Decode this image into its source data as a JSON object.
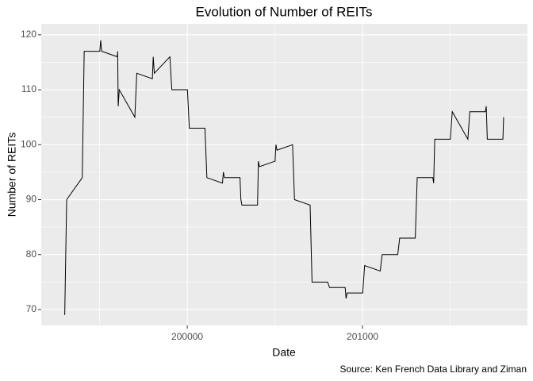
{
  "chart_data": {
    "type": "line",
    "title": "Evolution of Number of REITs",
    "x_label": "Date",
    "y_label": "Number of REITs",
    "caption": "Source: Ken French Data Library and Ziman",
    "x": [
      199301,
      199312,
      199401,
      199412,
      199501,
      199506,
      199512,
      199601,
      199603,
      199606,
      199612,
      199701,
      199712,
      199801,
      199806,
      199812,
      199901,
      199912,
      200001,
      200012,
      200101,
      200112,
      200201,
      200206,
      200212,
      200301,
      200306,
      200312,
      200401,
      200406,
      200412,
      200501,
      200506,
      200512,
      200601,
      200612,
      200701,
      200712,
      200801,
      200812,
      200901,
      200906,
      200912,
      201001,
      201012,
      201101,
      201112,
      201201,
      201212,
      201301,
      201312,
      201401,
      201406,
      201412,
      201501,
      201512,
      201601,
      201612,
      201701,
      201706,
      201712,
      201801,
      201805
    ],
    "series": [
      {
        "name": "REITs",
        "color": "#000000",
        "values": [
          69,
          90,
          94,
          117,
          117,
          119,
          117,
          116,
          117,
          107,
          110,
          105,
          113,
          112,
          116,
          113,
          116,
          110,
          110,
          103,
          103,
          94,
          93,
          95,
          94,
          94,
          90,
          89,
          89,
          97,
          96,
          97,
          100,
          99,
          100,
          90,
          89,
          75,
          75,
          74,
          74,
          72,
          73,
          73,
          78,
          77,
          80,
          80,
          83,
          83,
          94,
          94,
          93,
          101,
          101,
          106,
          101,
          106,
          106,
          107,
          101,
          101,
          105
        ]
      }
    ],
    "xlim": [
      199167,
      201941
    ],
    "xticks": [
      200000,
      201000
    ],
    "minor_xticks": [
      199500,
      200500,
      201500
    ],
    "ylim": [
      67.1,
      122
    ],
    "yticks": [
      70,
      80,
      90,
      100,
      110,
      120
    ],
    "minor_yticks": [
      75,
      85,
      95,
      105,
      115
    ],
    "grid": true
  }
}
